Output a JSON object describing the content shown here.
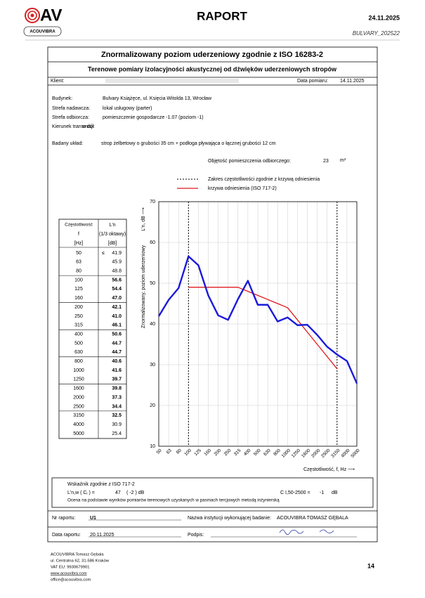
{
  "header": {
    "logo": "AV",
    "brand": "ACOUVIBRA",
    "title": "RAPORT",
    "date": "24.11.2025",
    "code": "BULVARY_202522"
  },
  "report": {
    "title": "Znormalizowany poziom uderzeniowy zgodnie z ISO 16283-2",
    "subtitle": "Terenowe pomiary izolacyjności akustycznej od dźwięków uderzeniowych stropów",
    "client_label": "Klient:",
    "date_label": "Data pomiaru:",
    "date": "14.11.2025",
    "fields": [
      {
        "label": "Budynek:",
        "value": "Bulvary Książęce, ul. Księcia Witolda 13, Wrocław"
      },
      {
        "label": "Strefa nadawcza:",
        "value": "lokal usługowy (parter)"
      },
      {
        "label": "Strefa odbiorcza:",
        "value": "pomieszczenie gospodarcze -1.07 (poziom -1)"
      },
      {
        "label": "Kierunek transmisji:",
        "value": "w dół"
      },
      {
        "label": "Badany układ:",
        "value": "strop żelbetowy o grubości 35 cm + podłoga pływająca o łącznej grubości 12 cm"
      }
    ],
    "volume_label": "Objętość pomieszczenia odbiorczego:",
    "volume": "23",
    "volume_unit": "m³"
  },
  "table": {
    "header": [
      "Częstotliwość",
      "L'n"
    ],
    "subheader": [
      "f",
      "(1/3 oktawy)"
    ],
    "units": [
      "[Hz]",
      "[dB]"
    ],
    "qualifier": {
      "row": 0,
      "text": "≤"
    }
  },
  "chart_data": {
    "type": "line",
    "y_label": "Znormalizowany,  poziom uderzeniowy",
    "y_unit": "L'n,   dB ⟶",
    "x_label": "Częstotliwość, f, Hz ⟶",
    "categories": [
      50,
      63,
      80,
      100,
      125,
      160,
      200,
      250,
      315,
      400,
      500,
      630,
      800,
      1000,
      1250,
      1600,
      2000,
      2500,
      3150,
      4000,
      5000
    ],
    "series": [
      {
        "color": "#1a1adb",
        "values": [
          41.9,
          45.9,
          48.8,
          56.6,
          54.4,
          47.0,
          42.1,
          41.0,
          46.1,
          50.6,
          44.7,
          44.7,
          40.6,
          41.6,
          39.7,
          39.8,
          37.3,
          34.4,
          32.5,
          30.9,
          25.4
        ],
        "value_labels": [
          "41.9",
          "45.9",
          "48.8",
          "56.6",
          "54.4",
          "47.0",
          "42.1",
          "41.0",
          "46.1",
          "50.6",
          "44.7",
          "44.7",
          "40.6",
          "41.6",
          "39.7",
          "39.8",
          "37.3",
          "34.4",
          "32.5",
          "30.9",
          "25.4"
        ]
      },
      {
        "name": "krzywa odniesienia (ISO 717-2)",
        "color": "#e0191f",
        "values": [
          null,
          null,
          null,
          49,
          49,
          49,
          49,
          49,
          49,
          48,
          47,
          46,
          45,
          44,
          41,
          38,
          35,
          32,
          29,
          null,
          null
        ]
      }
    ],
    "range": [
      100,
      3150
    ],
    "range_label": "Zakres częstotliwości zgodnie z krzywą odniesienia",
    "ylim": [
      10,
      70
    ],
    "yticks": [
      10,
      20,
      30,
      40,
      50,
      60,
      70
    ],
    "grid": true
  },
  "rating": {
    "title": "Wskaźnik zgodnie z ISO 717-2",
    "lhs": "L'n,w    ( Cᵢ ) =",
    "value": "47",
    "ci": "(    -2    ) dB",
    "c_lhs": "C I,50-2500 =",
    "c_value": "-1",
    "c_unit": "dB",
    "note": "Ocena na podstawie wyników pomiarów terenowych uzyskanych w pasmach tercjowych metodą inżynierską"
  },
  "signoff": {
    "report_no_label": "Nr raportu:",
    "report_no": "U1",
    "institution_label": "Nazwa instytucji wykonującej badanie:",
    "institution": "ACOUVIBRA TOMASZ GĘBALA",
    "report_date_label": "Data raportu:",
    "report_date": "20.11.2025",
    "signature_label": "Podpis:"
  },
  "footer": {
    "lines": [
      "ACOUVIBRA Tomasz Gębala",
      "ul. Centralna 62, 31-586 Kraków",
      "VAT EU: 9930679901",
      "www.acouvibra.com",
      "office@acouvibra.com"
    ],
    "page": "14"
  }
}
